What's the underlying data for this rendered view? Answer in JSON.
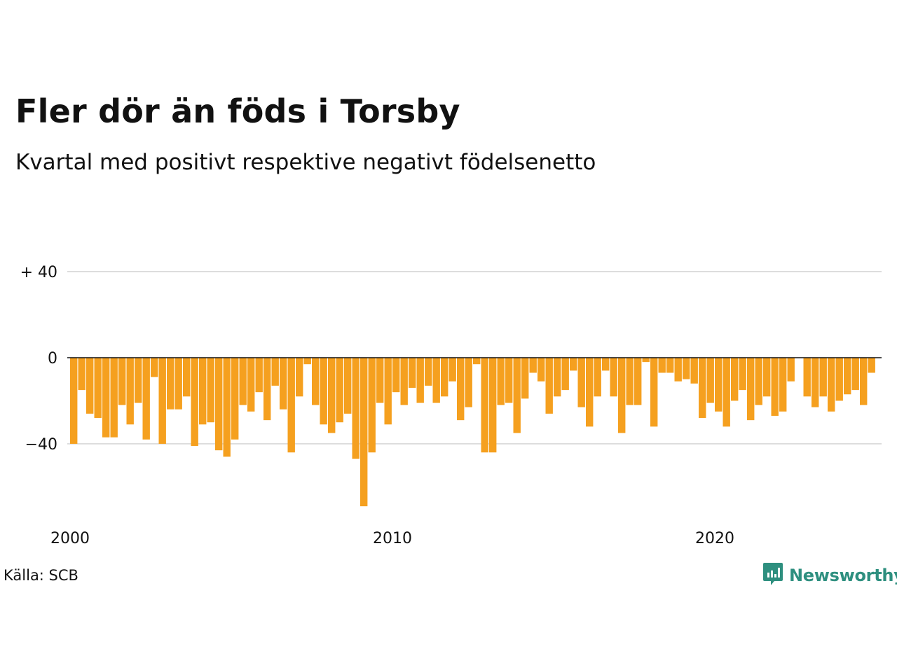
{
  "title": "Fler dör än föds i Torsby",
  "subtitle": "Kvartal med positivt respektive negativt födelsenetto",
  "source": "Källa: SCB",
  "brand": {
    "name": "Newsworthy",
    "icon": "newsworthy-logo-icon",
    "color": "#2e8f7f"
  },
  "colors": {
    "bar": "#f5a01f",
    "grid": "#dddddd",
    "zero_line": "#111111"
  },
  "chart_data": {
    "type": "bar",
    "ylim": [
      -70,
      45
    ],
    "y_ticks": [
      {
        "value": 40,
        "label": "+ 40"
      },
      {
        "value": 0,
        "label": "0"
      },
      {
        "value": -40,
        "label": "−40"
      }
    ],
    "x_ticks": [
      {
        "value": 2000,
        "label": "2000"
      },
      {
        "value": 2010,
        "label": "2010"
      },
      {
        "value": 2020,
        "label": "2020"
      }
    ],
    "x_start": 2000,
    "grid": true,
    "series": [
      {
        "values": [
          -40,
          -15,
          -26,
          -28,
          -37,
          -37,
          -22,
          -31,
          -21,
          -38,
          -9,
          -40,
          -24,
          -24,
          -18,
          -41,
          -31,
          -30,
          -43,
          -46,
          -38,
          -22,
          -25,
          -16,
          -29,
          -13,
          -24,
          -44,
          -18,
          -3,
          -22,
          -31,
          -35,
          -30,
          -26,
          -47,
          -69,
          -44,
          -21,
          -31,
          -16,
          -22,
          -14,
          -21,
          -13,
          -21,
          -18,
          -11,
          -29,
          -23,
          -3,
          -44,
          -44,
          -22,
          -21,
          -35,
          -19,
          -7,
          -11,
          -26,
          -18,
          -15,
          -6,
          -23,
          -32,
          -18,
          -6,
          -18,
          -35,
          -22,
          -22,
          -2,
          -32,
          -7,
          -7,
          -11,
          -10,
          -12,
          -28,
          -21,
          -25,
          -32,
          -20,
          -15,
          -29,
          -22,
          -18,
          -27,
          -25,
          -11,
          0,
          -18,
          -23,
          -18,
          -25,
          -20,
          -17,
          -15,
          -22,
          -7
        ]
      }
    ]
  }
}
